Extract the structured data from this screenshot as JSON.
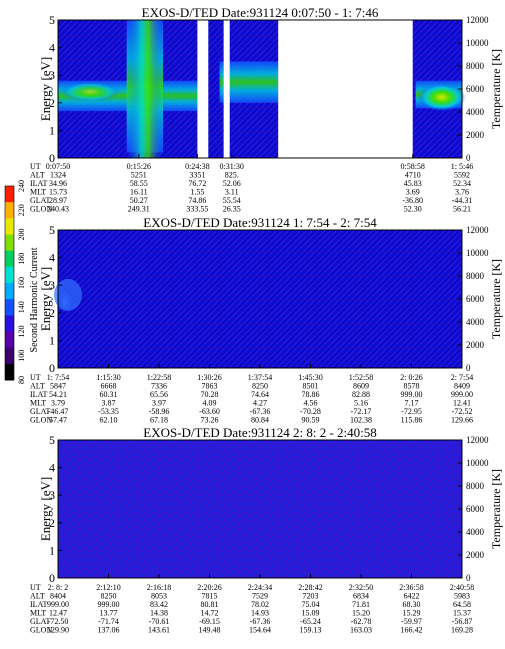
{
  "colors": {
    "background": "#0000cc",
    "purple": "#4b0099"
  },
  "colorbar": {
    "label": "Second Harmonic Current",
    "ticks": [
      "80",
      "100",
      "120",
      "140",
      "160",
      "180",
      "200",
      "220",
      "240"
    ],
    "colors": [
      "#000000",
      "#3a006e",
      "#5a00a8",
      "#2a10e0",
      "#1450ff",
      "#00aaff",
      "#00e0d0",
      "#00d060",
      "#7ee000",
      "#e8e800",
      "#ffb000",
      "#ff2000"
    ]
  },
  "chart_data": [
    {
      "type": "heatmap",
      "title": "EXOS-D/TED   Date:931124   0:07:50 - 1: 7:46",
      "ylabel": "Energy [eV]",
      "y2label": "Temperature [K]",
      "ylim": [
        0,
        5
      ],
      "y2lim": [
        0,
        12000
      ],
      "yticks": [
        "0",
        "1",
        "2",
        "3",
        "4",
        "5"
      ],
      "y2ticks": [
        "0",
        "2000",
        "4000",
        "6000",
        "8000",
        "10000",
        "12000"
      ],
      "xlim": [
        0,
        1
      ],
      "blank_intervals": [
        [
          0.345,
          0.372
        ],
        [
          0.41,
          0.425
        ],
        [
          0.545,
          0.878
        ]
      ],
      "features": [
        {
          "x0": 0.0,
          "x1": 0.345,
          "y0": 1.7,
          "y1": 2.8,
          "level": "green"
        },
        {
          "x0": 0.17,
          "x1": 0.26,
          "y0": 0.2,
          "y1": 5.0,
          "level": "green"
        },
        {
          "x0": 0.4,
          "x1": 0.545,
          "y0": 2.0,
          "y1": 3.5,
          "level": "cyan"
        },
        {
          "x0": 0.885,
          "x1": 1.0,
          "y0": 1.8,
          "y1": 2.8,
          "level": "green"
        }
      ],
      "table": {
        "columns": [
          "0:07:50",
          "0:15:26",
          "",
          "0:24:38",
          "0:31:30",
          "",
          "",
          "",
          "0:58:58",
          "1:5:46"
        ],
        "rows": [
          {
            "name": "UT",
            "values": [
              "0:07:50",
              "0:15:26",
              "",
              "0:24:38",
              "0:31:30",
              "",
              "",
              "",
              "0:58:58",
              "1: 5:46"
            ]
          },
          {
            "name": "ALT",
            "values": [
              "1324",
              "5251",
              "",
              "3351",
              "825.",
              "",
              "",
              "",
              "4710",
              "5592"
            ]
          },
          {
            "name": "ILAT",
            "values": [
              "34.96",
              "58.55",
              "",
              "76.72",
              "52.06",
              "",
              "",
              "",
              "45.83",
              "52.34"
            ]
          },
          {
            "name": "MLT",
            "values": [
              "15.73",
              "16.11",
              "",
              "1.55",
              "3.11",
              "",
              "",
              "",
              "3.69",
              "3.76"
            ]
          },
          {
            "name": "GLAT",
            "values": [
              "28.97",
              "50.27",
              "",
              "74.86",
              "55.54",
              "",
              "",
              "",
              "-36.80",
              "-44.31"
            ]
          },
          {
            "name": "GLON",
            "values": [
              "240.43",
              "249.31",
              "",
              "333.55",
              "26.35",
              "",
              "",
              "",
              "52.30",
              "56.21"
            ]
          }
        ]
      }
    },
    {
      "type": "heatmap",
      "title": "EXOS-D/TED   Date:931124   1: 7:54 - 2: 7:54",
      "ylabel": "Energy [eV]",
      "y2label": "Temperature [K]",
      "ylim": [
        0,
        5
      ],
      "y2lim": [
        0,
        12000
      ],
      "yticks": [
        "0",
        "1",
        "2",
        "3",
        "4",
        "5"
      ],
      "y2ticks": [
        "0",
        "2000",
        "4000",
        "6000",
        "8000",
        "10000",
        "12000"
      ],
      "xlim": [
        0,
        1
      ],
      "features": [
        {
          "x0": 0.0,
          "x1": 0.035,
          "y0": 2.0,
          "y1": 2.8,
          "level": "blue"
        }
      ],
      "table": {
        "rows": [
          {
            "name": "UT",
            "values": [
              "1: 7:54",
              "1:15:30",
              "1:22:58",
              "1:30:26",
              "1:37:54",
              "1:45:30",
              "1:52:58",
              "2: 0:26",
              "2: 7:54"
            ]
          },
          {
            "name": "ALT",
            "values": [
              "5847",
              "6668",
              "7336",
              "7863",
              "8250",
              "8501",
              "8609",
              "8578",
              "8409"
            ]
          },
          {
            "name": "ILAT",
            "values": [
              "54.21",
              "60.31",
              "65.56",
              "70.28",
              "74.64",
              "78.86",
              "82.88",
              "999.00",
              "999.00"
            ]
          },
          {
            "name": "MLT",
            "values": [
              "3.79",
              "3.87",
              "3.97",
              "4.09",
              "4.27",
              "4.56",
              "5.16",
              "7.17",
              "12.41"
            ]
          },
          {
            "name": "GLAT",
            "values": [
              "-46.47",
              "-53.35",
              "-58.96",
              "-63.60",
              "-67.36",
              "-70.28",
              "-72.17",
              "-72.95",
              "-72.52"
            ]
          },
          {
            "name": "GLON",
            "values": [
              "57.47",
              "62.10",
              "67.18",
              "73.26",
              "80.84",
              "90.59",
              "102.38",
              "115.86",
              "129.66"
            ]
          }
        ]
      }
    },
    {
      "type": "heatmap",
      "title": "EXOS-D/TED   Date:931124   2: 8: 2 - 2:40:58",
      "ylabel": "Energy [eV]",
      "y2label": "Temperature [K]",
      "ylim": [
        0,
        5
      ],
      "y2lim": [
        0,
        12000
      ],
      "yticks": [
        "0",
        "1",
        "2",
        "3",
        "4",
        "5"
      ],
      "y2ticks": [
        "0",
        "2000",
        "4000",
        "6000",
        "8000",
        "10000",
        "12000"
      ],
      "xlim": [
        0,
        1
      ],
      "features": [],
      "table": {
        "rows": [
          {
            "name": "UT",
            "values": [
              "2: 8: 2",
              "2:12:10",
              "2:16:18",
              "2:20:26",
              "2:24:34",
              "2:28:42",
              "2:32:50",
              "2:36:58",
              "2:40:58"
            ]
          },
          {
            "name": "ALT",
            "values": [
              "8404",
              "8250",
              "8053",
              "7815",
              "7529",
              "7203",
              "6834",
              "6422",
              "5983"
            ]
          },
          {
            "name": "ILAT",
            "values": [
              "999.00",
              "999.00",
              "83.42",
              "80.81",
              "78.02",
              "75.04",
              "71.81",
              "68.30",
              "64.58"
            ]
          },
          {
            "name": "MLT",
            "values": [
              "12.47",
              "13.77",
              "14.38",
              "14.72",
              "14.93",
              "15.09",
              "15.20",
              "15.29",
              "15.37"
            ]
          },
          {
            "name": "GLAT",
            "values": [
              "-72.50",
              "-71.74",
              "-70.61",
              "-69.15",
              "-67.36",
              "-65.24",
              "-62.78",
              "-59.97",
              "-56.87"
            ]
          },
          {
            "name": "GLON",
            "values": [
              "129.90",
              "137.06",
              "143.61",
              "149.48",
              "154.64",
              "159.13",
              "163.03",
              "166.42",
              "169.28"
            ]
          }
        ]
      }
    }
  ]
}
